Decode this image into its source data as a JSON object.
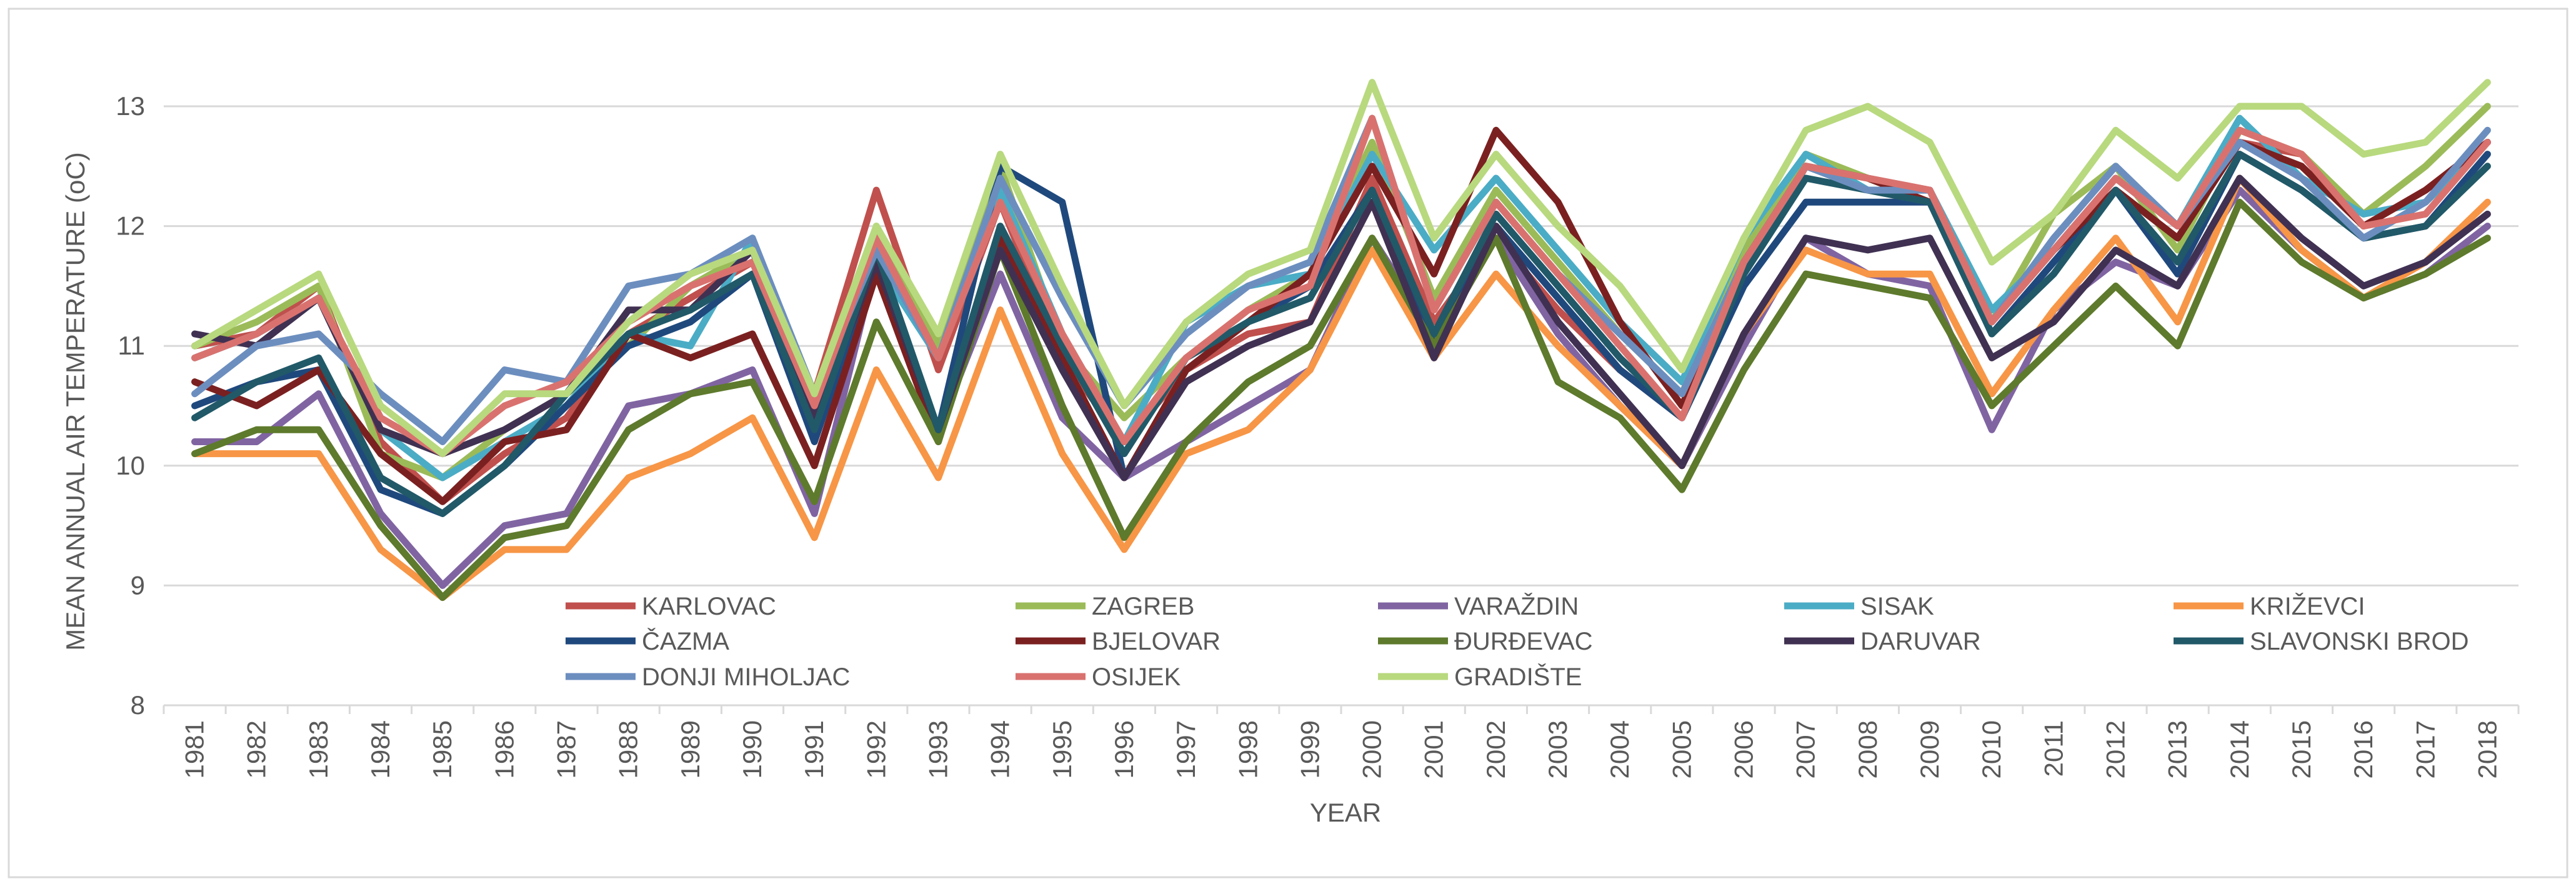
{
  "chart_data": {
    "type": "line",
    "title": "",
    "xlabel": "YEAR",
    "ylabel": "MEAN ANNUAL AIR TEMPERATURE (oC)",
    "ylim": [
      8,
      13
    ],
    "yticks": [
      "8",
      "9",
      "10",
      "11",
      "12",
      "13"
    ],
    "grid": true,
    "legend_position": "bottom-center",
    "categories": [
      "1981",
      "1982",
      "1983",
      "1984",
      "1985",
      "1986",
      "1987",
      "1988",
      "1989",
      "1990",
      "1991",
      "1992",
      "1993",
      "1994",
      "1995",
      "1996",
      "1997",
      "1998",
      "1999",
      "2000",
      "2001",
      "2002",
      "2003",
      "2004",
      "2005",
      "2006",
      "2007",
      "2008",
      "2009",
      "2010",
      "2011",
      "2012",
      "2013",
      "2014",
      "2015",
      "2016",
      "2017",
      "2018"
    ],
    "series": [
      {
        "name": "KARLOVAC",
        "color": "#C0504D",
        "values": [
          11.0,
          11.1,
          11.5,
          10.2,
          9.7,
          10.1,
          10.4,
          11.1,
          11.4,
          11.7,
          10.6,
          12.3,
          10.8,
          12.2,
          10.9,
          10.2,
          10.8,
          11.1,
          11.2,
          12.4,
          11.2,
          11.9,
          11.3,
          10.8,
          10.4,
          11.6,
          12.5,
          12.4,
          12.3,
          11.2,
          11.8,
          12.3,
          11.9,
          12.7,
          12.6,
          12.0,
          12.3,
          12.7
        ]
      },
      {
        "name": "ZAGREB",
        "color": "#9BBB59",
        "values": [
          11.0,
          11.2,
          11.5,
          10.1,
          9.9,
          10.3,
          10.6,
          11.0,
          11.5,
          11.8,
          10.5,
          12.0,
          11.0,
          12.5,
          11.0,
          10.4,
          10.9,
          11.3,
          11.6,
          12.7,
          11.4,
          12.3,
          11.7,
          11.1,
          10.6,
          11.8,
          12.6,
          12.4,
          12.2,
          11.2,
          12.1,
          12.5,
          11.8,
          12.8,
          12.6,
          12.1,
          12.5,
          13.0
        ]
      },
      {
        "name": "VARAŽDIN",
        "color": "#8064A2",
        "values": [
          10.2,
          10.2,
          10.6,
          9.6,
          9.0,
          9.5,
          9.6,
          10.5,
          10.6,
          10.8,
          9.6,
          11.7,
          10.3,
          11.6,
          10.4,
          9.9,
          10.2,
          10.5,
          10.8,
          11.9,
          11.1,
          11.9,
          11.1,
          10.5,
          10.0,
          11.0,
          11.9,
          11.6,
          11.5,
          10.3,
          11.3,
          11.7,
          11.5,
          12.3,
          11.8,
          11.4,
          11.6,
          12.0
        ]
      },
      {
        "name": "SISAK",
        "color": "#4BACC6",
        "values": [
          10.9,
          11.1,
          11.4,
          10.3,
          9.9,
          10.2,
          10.5,
          11.1,
          11.0,
          11.9,
          10.3,
          11.7,
          10.9,
          12.3,
          11.1,
          10.2,
          11.2,
          11.5,
          11.6,
          12.6,
          11.8,
          12.4,
          11.8,
          11.2,
          10.7,
          11.9,
          12.6,
          12.3,
          12.3,
          11.3,
          11.8,
          12.4,
          12.0,
          12.9,
          12.4,
          12.1,
          12.2,
          12.7
        ]
      },
      {
        "name": "KRIŽEVCI",
        "color": "#F79646",
        "values": [
          10.1,
          10.1,
          10.1,
          9.3,
          8.9,
          9.3,
          9.3,
          9.9,
          10.1,
          10.4,
          9.4,
          10.8,
          9.9,
          11.3,
          10.1,
          9.3,
          10.1,
          10.3,
          10.8,
          11.8,
          10.9,
          11.6,
          11.0,
          10.5,
          10.0,
          11.1,
          11.8,
          11.6,
          11.6,
          10.6,
          11.3,
          11.9,
          11.2,
          12.4,
          11.8,
          11.4,
          11.7,
          12.2
        ]
      },
      {
        "name": "ČAZMA",
        "color": "#1F497D",
        "values": [
          10.5,
          10.7,
          10.8,
          9.8,
          9.6,
          10.0,
          10.5,
          11.0,
          11.2,
          11.6,
          10.2,
          11.7,
          10.3,
          12.5,
          12.2,
          9.9,
          10.8,
          11.2,
          11.5,
          12.3,
          11.0,
          12.0,
          11.4,
          10.8,
          10.4,
          11.5,
          12.2,
          12.2,
          12.2,
          11.1,
          11.7,
          12.3,
          11.6,
          12.6,
          12.3,
          11.9,
          12.0,
          12.6
        ]
      },
      {
        "name": "BJELOVAR",
        "color": "#7B2020",
        "values": [
          10.7,
          10.5,
          10.8,
          10.1,
          9.7,
          10.2,
          10.3,
          11.1,
          10.9,
          11.1,
          10.0,
          11.6,
          10.2,
          11.9,
          10.9,
          9.9,
          10.8,
          11.2,
          11.6,
          12.5,
          11.6,
          12.8,
          12.2,
          11.2,
          10.5,
          11.7,
          12.5,
          12.4,
          12.2,
          11.2,
          11.8,
          12.3,
          11.9,
          12.7,
          12.5,
          12.0,
          12.3,
          12.7
        ]
      },
      {
        "name": "ĐURĐEVAC",
        "color": "#5E7A2C",
        "values": [
          10.1,
          10.3,
          10.3,
          9.5,
          8.9,
          9.4,
          9.5,
          10.3,
          10.6,
          10.7,
          9.7,
          11.2,
          10.2,
          11.8,
          10.5,
          9.4,
          10.2,
          10.7,
          11.0,
          11.9,
          11.0,
          11.9,
          10.7,
          10.4,
          9.8,
          10.8,
          11.6,
          11.5,
          11.4,
          10.5,
          11.0,
          11.5,
          11.0,
          12.2,
          11.7,
          11.4,
          11.6,
          11.9
        ]
      },
      {
        "name": "DARUVAR",
        "color": "#403152",
        "values": [
          11.1,
          11.0,
          11.4,
          10.3,
          10.1,
          10.3,
          10.6,
          11.3,
          11.3,
          11.8,
          10.4,
          11.7,
          10.3,
          11.8,
          10.8,
          9.9,
          10.7,
          11.0,
          11.2,
          12.2,
          10.9,
          12.0,
          11.2,
          10.6,
          10.0,
          11.1,
          11.9,
          11.8,
          11.9,
          10.9,
          11.2,
          11.8,
          11.5,
          12.4,
          11.9,
          11.5,
          11.7,
          12.1
        ]
      },
      {
        "name": "SLAVONSKI BROD",
        "color": "#215968",
        "values": [
          10.4,
          10.7,
          10.9,
          9.9,
          9.6,
          10.0,
          10.6,
          11.1,
          11.3,
          11.6,
          10.3,
          11.8,
          10.3,
          12.0,
          11.0,
          10.1,
          10.9,
          11.2,
          11.4,
          12.3,
          11.1,
          12.1,
          11.5,
          10.9,
          10.4,
          11.6,
          12.4,
          12.3,
          12.2,
          11.1,
          11.6,
          12.3,
          11.7,
          12.6,
          12.3,
          11.9,
          12.0,
          12.5
        ]
      },
      {
        "name": "DONJI MIHOLJAC",
        "color": "#6C8EBF",
        "values": [
          10.6,
          11.0,
          11.1,
          10.6,
          10.2,
          10.8,
          10.7,
          11.5,
          11.6,
          11.9,
          10.6,
          11.8,
          10.9,
          12.4,
          11.4,
          10.5,
          11.1,
          11.5,
          11.7,
          12.9,
          11.3,
          12.2,
          11.6,
          11.1,
          10.6,
          11.7,
          12.5,
          12.3,
          12.3,
          11.2,
          11.9,
          12.5,
          12.0,
          12.7,
          12.4,
          11.9,
          12.2,
          12.8
        ]
      },
      {
        "name": "OSIJEK",
        "color": "#D9726F",
        "values": [
          10.9,
          11.1,
          11.4,
          10.4,
          10.1,
          10.5,
          10.7,
          11.2,
          11.5,
          11.7,
          10.5,
          11.9,
          10.9,
          12.2,
          11.1,
          10.2,
          10.9,
          11.3,
          11.5,
          12.9,
          11.3,
          12.2,
          11.6,
          11.0,
          10.4,
          11.7,
          12.5,
          12.4,
          12.3,
          11.2,
          11.8,
          12.4,
          12.0,
          12.8,
          12.6,
          12.0,
          12.1,
          12.7
        ]
      },
      {
        "name": "GRADIŠTE",
        "color": "#B8D97E",
        "values": [
          11.0,
          11.3,
          11.6,
          10.5,
          10.1,
          10.6,
          10.6,
          11.2,
          11.6,
          11.8,
          10.6,
          12.0,
          11.1,
          12.6,
          11.5,
          10.5,
          11.2,
          11.6,
          11.8,
          13.2,
          11.9,
          12.6,
          12.0,
          11.5,
          10.8,
          11.9,
          12.8,
          13.0,
          12.7,
          11.7,
          12.1,
          12.8,
          12.4,
          13.0,
          13.0,
          12.6,
          12.7,
          13.2
        ]
      }
    ]
  }
}
